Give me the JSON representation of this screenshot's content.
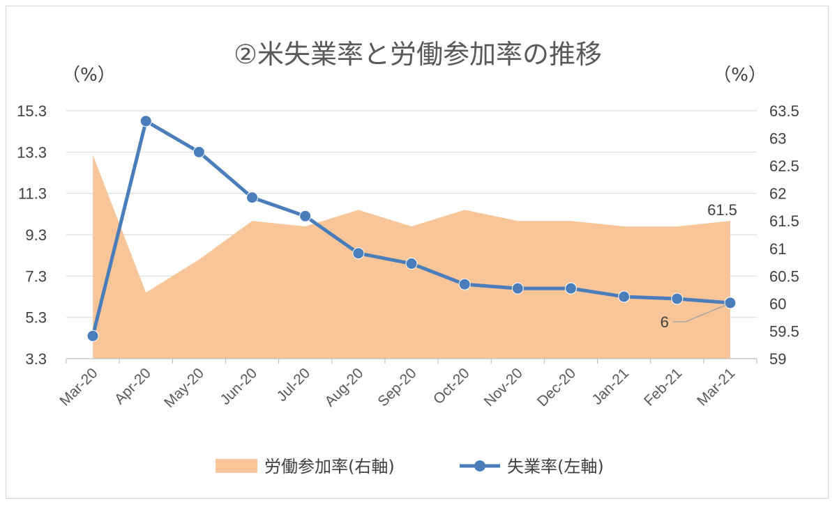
{
  "chart_data": {
    "type": "line",
    "title": "②米失業率と労働参加率の推移",
    "left_unit": "（%）",
    "right_unit": "（%）",
    "categories": [
      "Mar-20",
      "Apr-20",
      "May-20",
      "Jun-20",
      "Jul-20",
      "Aug-20",
      "Sep-20",
      "Oct-20",
      "Nov-20",
      "Dec-20",
      "Jan-21",
      "Feb-21",
      "Mar-21"
    ],
    "left_axis": {
      "min": 3.3,
      "max": 15.3,
      "ticks": [
        "3.3",
        "5.3",
        "7.3",
        "9.3",
        "11.3",
        "13.3",
        "15.3"
      ]
    },
    "right_axis": {
      "min": 59,
      "max": 63.5,
      "ticks": [
        "59",
        "59.5",
        "60",
        "60.5",
        "61",
        "61.5",
        "62",
        "62.5",
        "63",
        "63.5"
      ]
    },
    "series": [
      {
        "name": "労働参加率(右軸)",
        "chart_type": "area",
        "axis": "right",
        "color": "#f8c598",
        "values": [
          62.7,
          60.2,
          60.8,
          61.5,
          61.4,
          61.7,
          61.4,
          61.7,
          61.5,
          61.5,
          61.4,
          61.4,
          61.5
        ]
      },
      {
        "name": "失業率(左軸)",
        "chart_type": "line",
        "axis": "left",
        "color": "#4a7ebb",
        "values": [
          4.4,
          14.8,
          13.3,
          11.1,
          10.2,
          8.4,
          7.9,
          6.9,
          6.7,
          6.7,
          6.3,
          6.2,
          6.0
        ]
      }
    ],
    "data_labels": {
      "area_last": "61.5",
      "line_last": "6"
    },
    "grid": true,
    "legend_position": "bottom"
  }
}
